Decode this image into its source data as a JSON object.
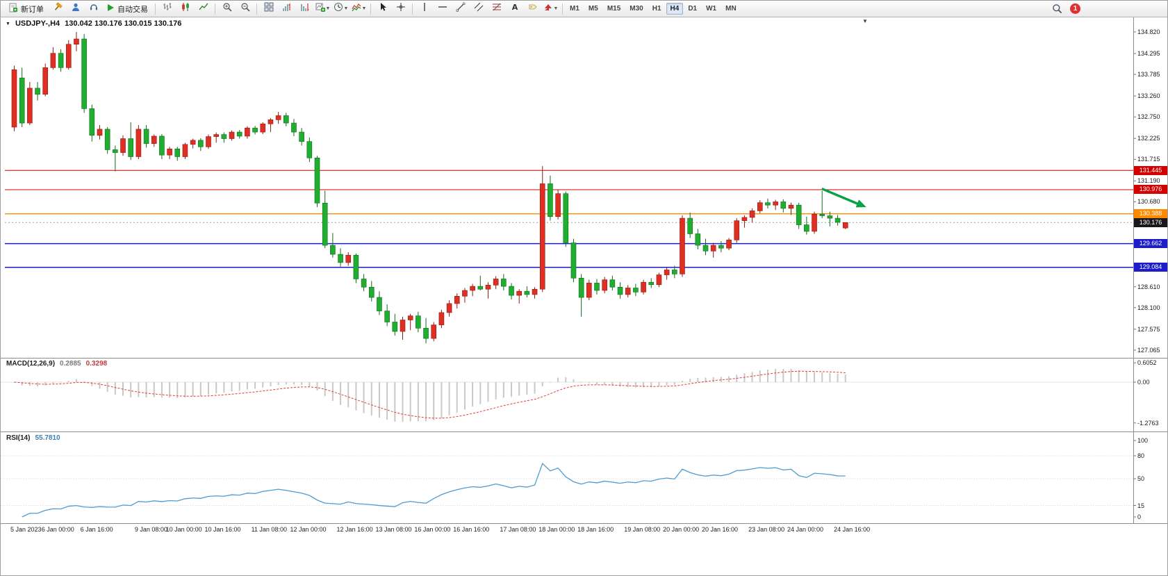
{
  "toolbar": {
    "new_order_label": "新订单",
    "auto_trading_label": "自动交易",
    "timeframes": [
      "M1",
      "M5",
      "M15",
      "M30",
      "H1",
      "H4",
      "D1",
      "W1",
      "MN"
    ],
    "active_timeframe": "H4",
    "notification_count": "1"
  },
  "chart": {
    "symbol_period": "USDJPY-,H4",
    "ohlc_text": "130.042 130.176 130.015 130.176"
  },
  "chart_data": {
    "type": "candlestick",
    "symbol": "USDJPY-",
    "timeframe": "H4",
    "title": "USDJPY-,H4",
    "current_ohlc": {
      "open": "130.042",
      "high": "130.176",
      "low": "130.015",
      "close": "130.176"
    },
    "up_color": "#df2e22",
    "up_border": "#8f1a12",
    "down_color": "#1fae2f",
    "down_border": "#116b1c",
    "price_ticks": [
      "134.820",
      "134.295",
      "133.785",
      "133.260",
      "132.750",
      "132.225",
      "131.715",
      "131.190",
      "130.680",
      "130.155",
      "129.645",
      "129.120",
      "128.610",
      "128.100",
      "127.575",
      "127.065"
    ],
    "time_labels": [
      [
        "5 Jan 2023",
        0
      ],
      [
        "6 Jan 00:00",
        4
      ],
      [
        "6 Jan 16:00",
        9
      ],
      [
        "9 Jan 08:00",
        16
      ],
      [
        "10 Jan 00:00",
        20
      ],
      [
        "10 Jan 16:00",
        25
      ],
      [
        "11 Jan 08:00",
        31
      ],
      [
        "12 Jan 00:00",
        36
      ],
      [
        "12 Jan 16:00",
        42
      ],
      [
        "13 Jan 08:00",
        47
      ],
      [
        "16 Jan 00:00",
        52
      ],
      [
        "16 Jan 16:00",
        57
      ],
      [
        "17 Jan 08:00",
        63
      ],
      [
        "18 Jan 00:00",
        68
      ],
      [
        "18 Jan 16:00",
        73
      ],
      [
        "19 Jan 08:00",
        79
      ],
      [
        "20 Jan 00:00",
        84
      ],
      [
        "20 Jan 16:00",
        89
      ],
      [
        "23 Jan 08:00",
        95
      ],
      [
        "24 Jan 00:00",
        100
      ],
      [
        "24 Jan 16:00",
        106
      ]
    ],
    "candles": [
      [
        132.5,
        134.0,
        132.4,
        133.9
      ],
      [
        133.7,
        133.95,
        132.5,
        132.6
      ],
      [
        132.6,
        133.6,
        132.55,
        133.45
      ],
      [
        133.45,
        133.6,
        133.15,
        133.3
      ],
      [
        133.3,
        134.05,
        133.25,
        133.95
      ],
      [
        133.95,
        134.45,
        133.9,
        134.3
      ],
      [
        134.3,
        134.4,
        133.85,
        133.95
      ],
      [
        133.95,
        134.62,
        133.9,
        134.52
      ],
      [
        134.52,
        134.82,
        134.35,
        134.65
      ],
      [
        134.65,
        134.77,
        132.85,
        132.95
      ],
      [
        132.95,
        133.05,
        132.15,
        132.3
      ],
      [
        132.3,
        132.55,
        132.2,
        132.45
      ],
      [
        132.45,
        132.5,
        131.85,
        131.95
      ],
      [
        131.95,
        132.05,
        131.42,
        131.88
      ],
      [
        131.88,
        132.3,
        131.8,
        132.22
      ],
      [
        132.22,
        132.62,
        131.7,
        131.78
      ],
      [
        131.78,
        132.55,
        131.72,
        132.45
      ],
      [
        132.45,
        132.55,
        132.0,
        132.1
      ],
      [
        132.1,
        132.32,
        132.02,
        132.28
      ],
      [
        132.28,
        132.33,
        131.72,
        131.82
      ],
      [
        131.82,
        132.02,
        131.72,
        131.97
      ],
      [
        131.97,
        132.02,
        131.68,
        131.78
      ],
      [
        131.78,
        132.12,
        131.72,
        132.08
      ],
      [
        132.08,
        132.22,
        131.98,
        132.18
      ],
      [
        132.18,
        132.23,
        131.92,
        132.02
      ],
      [
        132.02,
        132.32,
        131.97,
        132.27
      ],
      [
        132.27,
        132.37,
        132.12,
        132.32
      ],
      [
        132.32,
        132.37,
        132.12,
        132.22
      ],
      [
        132.22,
        132.42,
        132.17,
        132.38
      ],
      [
        132.38,
        132.43,
        132.22,
        132.28
      ],
      [
        132.28,
        132.52,
        132.22,
        132.48
      ],
      [
        132.48,
        132.53,
        132.32,
        132.38
      ],
      [
        132.38,
        132.62,
        132.33,
        132.58
      ],
      [
        132.58,
        132.72,
        132.38,
        132.68
      ],
      [
        132.68,
        132.87,
        132.58,
        132.78
      ],
      [
        132.78,
        132.85,
        132.52,
        132.6
      ],
      [
        132.6,
        132.7,
        132.28,
        132.38
      ],
      [
        132.38,
        132.48,
        132.05,
        132.15
      ],
      [
        132.15,
        132.25,
        131.65,
        131.75
      ],
      [
        131.75,
        131.8,
        130.55,
        130.65
      ],
      [
        130.65,
        130.95,
        129.55,
        129.62
      ],
      [
        129.62,
        129.92,
        129.32,
        129.4
      ],
      [
        129.4,
        129.55,
        129.1,
        129.2
      ],
      [
        129.2,
        129.45,
        129.12,
        129.38
      ],
      [
        129.38,
        129.42,
        128.7,
        128.8
      ],
      [
        128.8,
        128.92,
        128.5,
        128.6
      ],
      [
        128.6,
        128.75,
        128.25,
        128.35
      ],
      [
        128.35,
        128.5,
        127.92,
        128.02
      ],
      [
        128.02,
        128.18,
        127.65,
        127.75
      ],
      [
        127.75,
        127.95,
        127.42,
        127.52
      ],
      [
        127.52,
        127.88,
        127.32,
        127.8
      ],
      [
        127.8,
        127.95,
        127.55,
        127.9
      ],
      [
        127.9,
        128.0,
        127.5,
        127.6
      ],
      [
        127.6,
        127.85,
        127.23,
        127.35
      ],
      [
        127.35,
        127.75,
        127.28,
        127.68
      ],
      [
        127.68,
        128.05,
        127.6,
        127.98
      ],
      [
        127.98,
        128.28,
        127.88,
        128.2
      ],
      [
        128.2,
        128.45,
        128.08,
        128.38
      ],
      [
        128.38,
        128.58,
        128.22,
        128.52
      ],
      [
        128.52,
        128.68,
        128.38,
        128.62
      ],
      [
        128.62,
        128.88,
        128.52,
        128.55
      ],
      [
        128.55,
        128.72,
        128.32,
        128.65
      ],
      [
        128.65,
        128.87,
        128.55,
        128.8
      ],
      [
        128.8,
        128.92,
        128.52,
        128.62
      ],
      [
        128.62,
        128.7,
        128.3,
        128.4
      ],
      [
        128.4,
        128.55,
        128.2,
        128.5
      ],
      [
        128.5,
        128.62,
        128.35,
        128.42
      ],
      [
        128.42,
        128.6,
        128.32,
        128.55
      ],
      [
        128.55,
        131.55,
        128.48,
        131.12
      ],
      [
        131.12,
        131.32,
        130.22,
        130.32
      ],
      [
        130.32,
        130.98,
        130.25,
        130.88
      ],
      [
        130.88,
        130.93,
        129.58,
        129.68
      ],
      [
        129.68,
        129.78,
        128.72,
        128.82
      ],
      [
        128.82,
        128.92,
        127.88,
        128.35
      ],
      [
        128.35,
        128.78,
        128.28,
        128.7
      ],
      [
        128.7,
        128.8,
        128.42,
        128.52
      ],
      [
        128.52,
        128.85,
        128.45,
        128.78
      ],
      [
        128.78,
        128.88,
        128.52,
        128.6
      ],
      [
        128.6,
        128.72,
        128.32,
        128.42
      ],
      [
        128.42,
        128.65,
        128.35,
        128.58
      ],
      [
        128.58,
        128.68,
        128.38,
        128.48
      ],
      [
        128.48,
        128.78,
        128.42,
        128.72
      ],
      [
        128.72,
        128.82,
        128.58,
        128.66
      ],
      [
        128.66,
        128.95,
        128.6,
        128.9
      ],
      [
        128.9,
        129.08,
        128.78,
        129.02
      ],
      [
        129.02,
        129.12,
        128.82,
        128.92
      ],
      [
        128.92,
        130.35,
        128.85,
        130.28
      ],
      [
        130.28,
        130.42,
        129.8,
        129.9
      ],
      [
        129.9,
        130.02,
        129.52,
        129.62
      ],
      [
        129.62,
        129.78,
        129.38,
        129.48
      ],
      [
        129.48,
        129.68,
        129.32,
        129.62
      ],
      [
        129.62,
        129.72,
        129.45,
        129.55
      ],
      [
        129.55,
        129.8,
        129.5,
        129.75
      ],
      [
        129.75,
        130.28,
        129.68,
        130.22
      ],
      [
        130.22,
        130.35,
        130.05,
        130.3
      ],
      [
        130.3,
        130.52,
        130.18,
        130.46
      ],
      [
        130.46,
        130.72,
        130.4,
        130.66
      ],
      [
        130.66,
        130.76,
        130.52,
        130.6
      ],
      [
        130.6,
        130.73,
        130.48,
        130.68
      ],
      [
        130.68,
        130.74,
        130.42,
        130.52
      ],
      [
        130.52,
        130.66,
        130.36,
        130.6
      ],
      [
        130.6,
        130.66,
        130.02,
        130.12
      ],
      [
        130.12,
        130.32,
        129.88,
        129.96
      ],
      [
        129.96,
        130.44,
        129.9,
        130.38
      ],
      [
        130.38,
        130.95,
        130.28,
        130.34
      ],
      [
        130.34,
        130.44,
        130.08,
        130.28
      ],
      [
        130.28,
        130.36,
        130.1,
        130.18
      ],
      [
        130.042,
        130.176,
        130.015,
        130.176
      ]
    ],
    "hlines": [
      {
        "price": 131.445,
        "label": "131.445",
        "color": "#d40000",
        "width": 1,
        "kind": "resistance"
      },
      {
        "price": 130.976,
        "label": "130.976",
        "color": "#d40000",
        "width": 1,
        "kind": "resistance"
      },
      {
        "price": 130.388,
        "label": "130.388",
        "color": "#ff8a00",
        "width": 1.3,
        "kind": "level"
      },
      {
        "price": 129.662,
        "label": "129.662",
        "color": "#1c1ccd",
        "width": 1.5,
        "kind": "support"
      },
      {
        "price": 129.084,
        "label": "129.084",
        "color": "#1c1ccd",
        "width": 1.5,
        "kind": "support"
      }
    ],
    "current_price": {
      "value": 130.176,
      "label": "130.176",
      "badge_color": "#17171c",
      "line_color": "#9b9b9b"
    },
    "arrow": {
      "from_index": 104,
      "from_price": 131.0,
      "to_index": 110,
      "to_price": 130.55,
      "color": "#0aa048"
    },
    "indicators": [
      {
        "name": "MACD",
        "display": "MACD(12,26,9)",
        "value_main": "0.2885",
        "value_signal": "0.3298",
        "ticks": [
          "0.6052",
          "0.00",
          "-1.2763"
        ],
        "histogram_color": "#c8c8c8",
        "signal_color": "#e43a3a"
      },
      {
        "name": "RSI",
        "display": "RSI(14)",
        "value": "55.7810",
        "ticks": [
          "100",
          "80",
          "50",
          "15",
          "0"
        ],
        "levels": [
          80,
          50,
          15
        ],
        "line_color": "#4f9ad0"
      }
    ]
  }
}
